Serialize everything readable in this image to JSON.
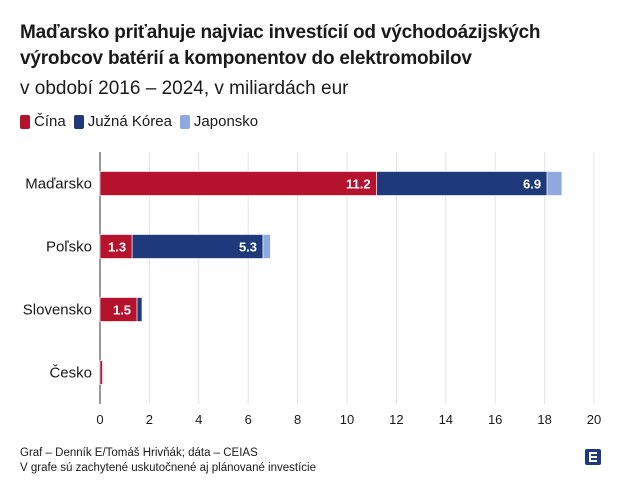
{
  "chart_data": {
    "type": "bar",
    "orientation": "horizontal",
    "stacked": true,
    "title": "Maďarsko priťahuje najviac investícií od východoázijských výrobcov batérií a komponentov do elektromobilov",
    "subtitle": "v období 2016 – 2024, v miliardách eur",
    "categories": [
      "Maďarsko",
      "Poľsko",
      "Slovensko",
      "Česko"
    ],
    "series": [
      {
        "name": "Čína",
        "color": "#b5122e",
        "values": [
          11.2,
          1.3,
          1.5,
          0.1
        ],
        "labels": [
          "11.2",
          "1.3",
          "1.5",
          ""
        ]
      },
      {
        "name": "Južná Kórea",
        "color": "#1f3a7a",
        "values": [
          6.9,
          5.3,
          0.2,
          0
        ],
        "labels": [
          "6.9",
          "5.3",
          "",
          ""
        ]
      },
      {
        "name": "Japonsko",
        "color": "#8fa9e0",
        "values": [
          0.6,
          0.3,
          0,
          0
        ],
        "labels": [
          "",
          "",
          "",
          ""
        ]
      }
    ],
    "xlim": [
      0,
      20
    ],
    "xticks": [
      0,
      2,
      4,
      6,
      8,
      10,
      12,
      14,
      16,
      18,
      20
    ],
    "grid": true,
    "legend": "top-left"
  },
  "footer": {
    "line1": "Graf – Denník E/Tomáš Hrivňák; dáta – CEIAS",
    "line2": "V grafe sú zachytené uskutočnené aj plánované investície"
  },
  "logo": {
    "name": "denník-e-logo"
  }
}
